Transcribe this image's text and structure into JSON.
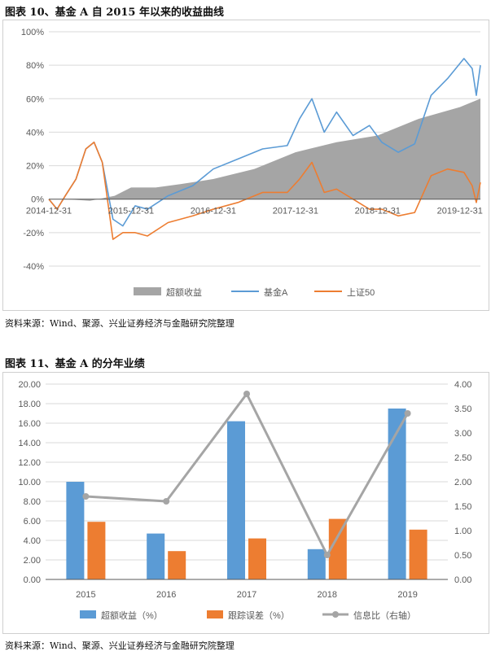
{
  "figure1": {
    "title": "图表 10、基金 A 自 2015 年以来的收益曲线",
    "source": "资料来源：Wind、聚源、兴业证券经济与金融研究院整理"
  },
  "figure2": {
    "title": "图表 11、基金 A 的分年业绩",
    "source": "资料来源：Wind、聚源、兴业证券经济与金融研究院整理"
  },
  "colors": {
    "blue": "#5b9bd5",
    "orange": "#ed7d31",
    "gray": "#a5a5a5",
    "grid": "#d9d9d9",
    "axis": "#595959"
  },
  "chart_data": [
    {
      "type": "line",
      "title": "",
      "y_unit": "%",
      "ylim": [
        -40,
        100
      ],
      "y_ticks": [
        "100%",
        "80%",
        "60%",
        "40%",
        "20%",
        "0%",
        "-20%",
        "-40%"
      ],
      "y_tick_values": [
        100,
        80,
        60,
        40,
        20,
        0,
        -20,
        -40
      ],
      "x_ticks": [
        "2014-12-31",
        "2015-12-31",
        "2016-12-31",
        "2017-12-31",
        "2018-12-31",
        "2019-12-31"
      ],
      "x_tick_values": [
        0,
        1,
        2,
        3,
        4,
        5
      ],
      "xlim": [
        0,
        5.25
      ],
      "series": [
        {
          "name": "超额收益",
          "style": "area",
          "color": "#a5a5a5",
          "x": [
            0,
            0.2,
            0.5,
            0.8,
            1.0,
            1.3,
            1.6,
            2.0,
            2.5,
            3.0,
            3.5,
            4.0,
            4.5,
            5.0,
            5.25
          ],
          "values": [
            0,
            0,
            -1,
            2,
            7,
            7,
            9,
            12,
            18,
            28,
            34,
            38,
            48,
            55,
            60
          ]
        },
        {
          "name": "基金A",
          "style": "line",
          "color": "#5b9bd5",
          "x": [
            0,
            0.1,
            0.2,
            0.33,
            0.45,
            0.55,
            0.65,
            0.78,
            0.9,
            1.05,
            1.2,
            1.45,
            1.75,
            2.0,
            2.3,
            2.6,
            2.9,
            3.05,
            3.2,
            3.35,
            3.5,
            3.7,
            3.9,
            4.05,
            4.25,
            4.45,
            4.65,
            4.85,
            5.05,
            5.15,
            5.2,
            5.25
          ],
          "values": [
            0,
            -6,
            2,
            12,
            30,
            34,
            22,
            -12,
            -16,
            -4,
            -6,
            2,
            8,
            18,
            24,
            30,
            32,
            48,
            60,
            40,
            52,
            38,
            44,
            34,
            28,
            33,
            62,
            72,
            84,
            78,
            62,
            80
          ]
        },
        {
          "name": "上证50",
          "style": "line",
          "color": "#ed7d31",
          "x": [
            0,
            0.1,
            0.2,
            0.33,
            0.45,
            0.55,
            0.65,
            0.78,
            0.9,
            1.05,
            1.2,
            1.45,
            1.75,
            2.0,
            2.3,
            2.6,
            2.9,
            3.05,
            3.2,
            3.35,
            3.5,
            3.7,
            3.9,
            4.05,
            4.25,
            4.45,
            4.65,
            4.85,
            5.05,
            5.15,
            5.2,
            5.25
          ],
          "values": [
            0,
            -6,
            2,
            12,
            30,
            34,
            22,
            -24,
            -20,
            -20,
            -22,
            -14,
            -10,
            -6,
            -2,
            4,
            4,
            12,
            22,
            4,
            6,
            0,
            -6,
            -6,
            -10,
            -8,
            14,
            18,
            16,
            8,
            -2,
            10
          ]
        }
      ],
      "legend": "bottom"
    },
    {
      "type": "bar",
      "categories": [
        "2015",
        "2016",
        "2017",
        "2018",
        "2019"
      ],
      "ylim": [
        0,
        20
      ],
      "y_ticks": [
        "20.00",
        "18.00",
        "16.00",
        "14.00",
        "12.00",
        "10.00",
        "8.00",
        "6.00",
        "4.00",
        "2.00",
        "0.00"
      ],
      "y_tick_values": [
        20,
        18,
        16,
        14,
        12,
        10,
        8,
        6,
        4,
        2,
        0
      ],
      "y2lim": [
        0,
        4
      ],
      "y2_ticks": [
        "4.00",
        "3.50",
        "3.00",
        "2.50",
        "2.00",
        "1.50",
        "1.00",
        "0.50",
        "0.00"
      ],
      "y2_tick_values": [
        4,
        3.5,
        3,
        2.5,
        2,
        1.5,
        1,
        0.5,
        0
      ],
      "series": [
        {
          "name": "超额收益（%）",
          "type": "bar",
          "axis": "left",
          "color": "#5b9bd5",
          "values": [
            10.0,
            4.7,
            16.2,
            3.1,
            17.5
          ]
        },
        {
          "name": "跟踪误差（%）",
          "type": "bar",
          "axis": "left",
          "color": "#ed7d31",
          "values": [
            5.9,
            2.9,
            4.2,
            6.2,
            5.1
          ]
        },
        {
          "name": "信息比（右轴）",
          "type": "line",
          "axis": "right",
          "color": "#a5a5a5",
          "values": [
            1.7,
            1.6,
            3.8,
            0.5,
            3.4
          ]
        }
      ],
      "legend": "bottom"
    }
  ]
}
